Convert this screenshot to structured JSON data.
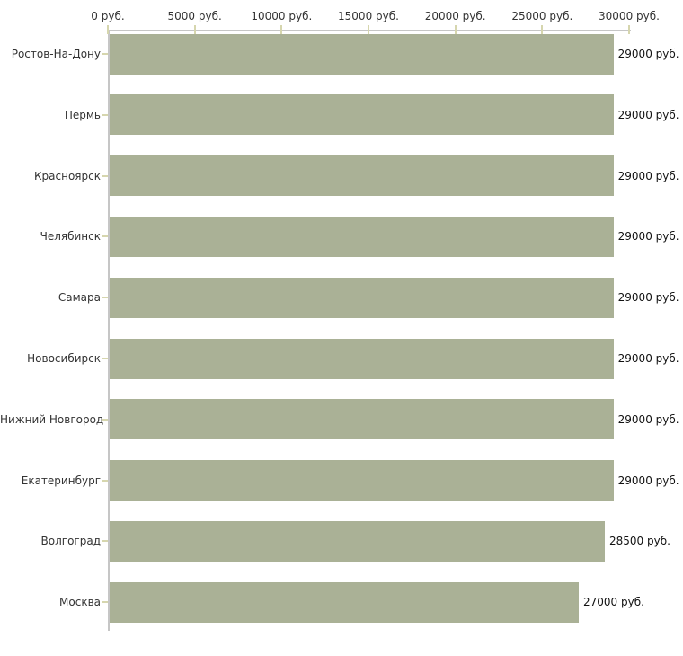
{
  "chart_data": {
    "type": "bar",
    "orientation": "horizontal",
    "title": "",
    "xlabel": "",
    "ylabel": "",
    "grid": false,
    "legend": "none",
    "categories": [
      "Ростов-На-Дону",
      "Пермь",
      "Красноярск",
      "Челябинск",
      "Самара",
      "Новосибирск",
      "Нижний Новгород",
      "Екатеринбург",
      "Волгоград",
      "Москва"
    ],
    "values": [
      29000,
      29000,
      29000,
      29000,
      29000,
      29000,
      29000,
      29000,
      28500,
      27000
    ],
    "value_labels": [
      "29000 руб.",
      "29000 руб.",
      "29000 руб.",
      "29000 руб.",
      "29000 руб.",
      "29000 руб.",
      "29000 руб.",
      "29000 руб.",
      "28500 руб.",
      "27000 руб."
    ],
    "xlim": [
      0,
      30000
    ],
    "x_ticks": [
      0,
      5000,
      10000,
      15000,
      20000,
      25000,
      30000
    ],
    "x_tick_labels": [
      "0 руб.",
      "5000 руб.",
      "10000 руб.",
      "15000 руб.",
      "20000 руб.",
      "25000 руб.",
      "30000 руб."
    ],
    "colors": {
      "bar": "#aab196",
      "axis": "#c6c6c6",
      "tick": "#d6d6ae",
      "text": "#333333",
      "background": "#ffffff"
    }
  }
}
